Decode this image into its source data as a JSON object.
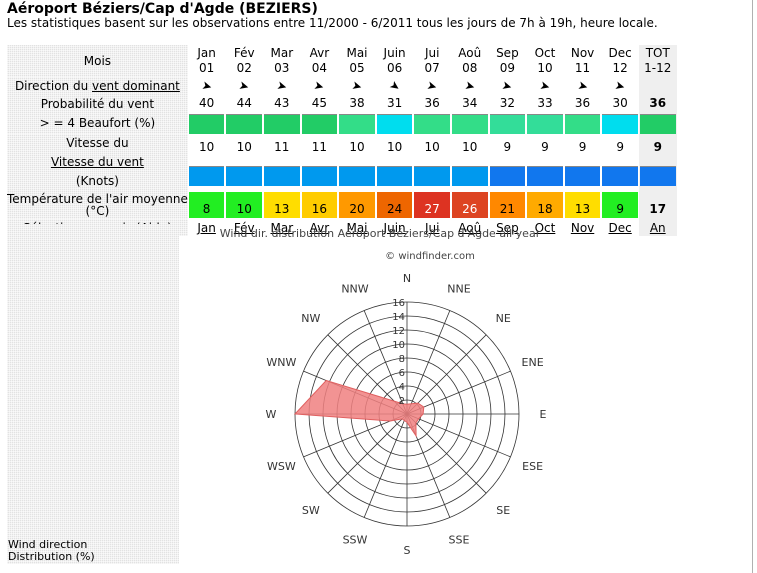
{
  "page": {
    "title": "Aéroport Béziers/Cap d'Agde (BEZIERS)",
    "subtitle": "Les statistiques basent sur les observations entre 11/2000 - 6/2011 tous les jours de 7h à 19h, heure locale."
  },
  "table": {
    "months_label": "Mois",
    "months": [
      {
        "name": "Jan",
        "num": "01"
      },
      {
        "name": "Fév",
        "num": "02"
      },
      {
        "name": "Mar",
        "num": "03"
      },
      {
        "name": "Avr",
        "num": "04"
      },
      {
        "name": "Mai",
        "num": "05"
      },
      {
        "name": "Juin",
        "num": "06"
      },
      {
        "name": "Jui",
        "num": "07"
      },
      {
        "name": "Aoû",
        "num": "08"
      },
      {
        "name": "Sep",
        "num": "09"
      },
      {
        "name": "Oct",
        "num": "10"
      },
      {
        "name": "Nov",
        "num": "11"
      },
      {
        "name": "Dec",
        "num": "12"
      }
    ],
    "total": {
      "name": "TOT",
      "num": "1-12",
      "probability": "36",
      "speed": "9",
      "temperature": "17",
      "select": "An"
    },
    "direction_label": "Direction du",
    "direction_link": "vent dominant",
    "probability_label_1": "Probabilité du vent",
    "probability_label_2": "> = 4 Beaufort (%)",
    "speed_label_1": "Vitesse du",
    "speed_label_2": "Vitesse du vent",
    "speed_label_3": "(Knots)",
    "temp_label_1": "Température de l'air moyenne",
    "temp_label_2": "(°C)",
    "select_label": "Sélectionnez mois (",
    "select_help": "Aide",
    "select_label_end": ")",
    "direction_deg": [
      285,
      285,
      285,
      285,
      285,
      305,
      285,
      285,
      285,
      285,
      285,
      285
    ],
    "probability": [
      "40",
      "44",
      "43",
      "45",
      "38",
      "31",
      "36",
      "34",
      "32",
      "33",
      "36",
      "30"
    ],
    "probability_colors": [
      "#22cc66",
      "#22cc66",
      "#22cc66",
      "#22cc66",
      "#33dd88",
      "#00ddee",
      "#33dd88",
      "#33dd88",
      "#33dd99",
      "#33dd99",
      "#33dd88",
      "#00ddee"
    ],
    "speed": [
      "10",
      "10",
      "11",
      "11",
      "10",
      "10",
      "10",
      "10",
      "9",
      "9",
      "9",
      "9"
    ],
    "speed_colors": [
      "#0099ee",
      "#0099ee",
      "#0099ee",
      "#0099ee",
      "#0099ee",
      "#0099ee",
      "#0099ee",
      "#0099ee",
      "#1177ee",
      "#1177ee",
      "#1177ee",
      "#1177ee"
    ],
    "temperature": [
      "8",
      "10",
      "13",
      "16",
      "20",
      "24",
      "27",
      "26",
      "21",
      "18",
      "13",
      "9"
    ],
    "temperature_colors": [
      "#22ee22",
      "#22ee22",
      "#ffdd00",
      "#ffcc00",
      "#ff9900",
      "#ee6600",
      "#dd3322",
      "#dd4422",
      "#ff8800",
      "#ffaa00",
      "#ffdd00",
      "#22ee22"
    ]
  },
  "rose": {
    "title": "Wind dir. distribution Aéroport Béziers/Cap d'Agde all year",
    "credit": "© windfinder.com",
    "directions": [
      "N",
      "NNE",
      "NE",
      "ENE",
      "E",
      "ESE",
      "SE",
      "SSE",
      "S",
      "SSW",
      "SW",
      "WSW",
      "W",
      "WNW",
      "NW",
      "NNW"
    ],
    "rings": [
      "2",
      "4",
      "6",
      "8",
      "10",
      "12",
      "14",
      "16"
    ],
    "max": 16,
    "values": [
      1.4,
      1.6,
      2.2,
      2.6,
      2.3,
      1.8,
      1.8,
      3.4,
      1.2,
      1.0,
      1.0,
      2.6,
      16,
      12.5,
      2.6,
      1.6
    ],
    "fill_color": "#f08080",
    "stroke_color": "#e06060"
  },
  "side": {
    "label_1": "Wind direction",
    "label_2": "Distribution (%)"
  }
}
